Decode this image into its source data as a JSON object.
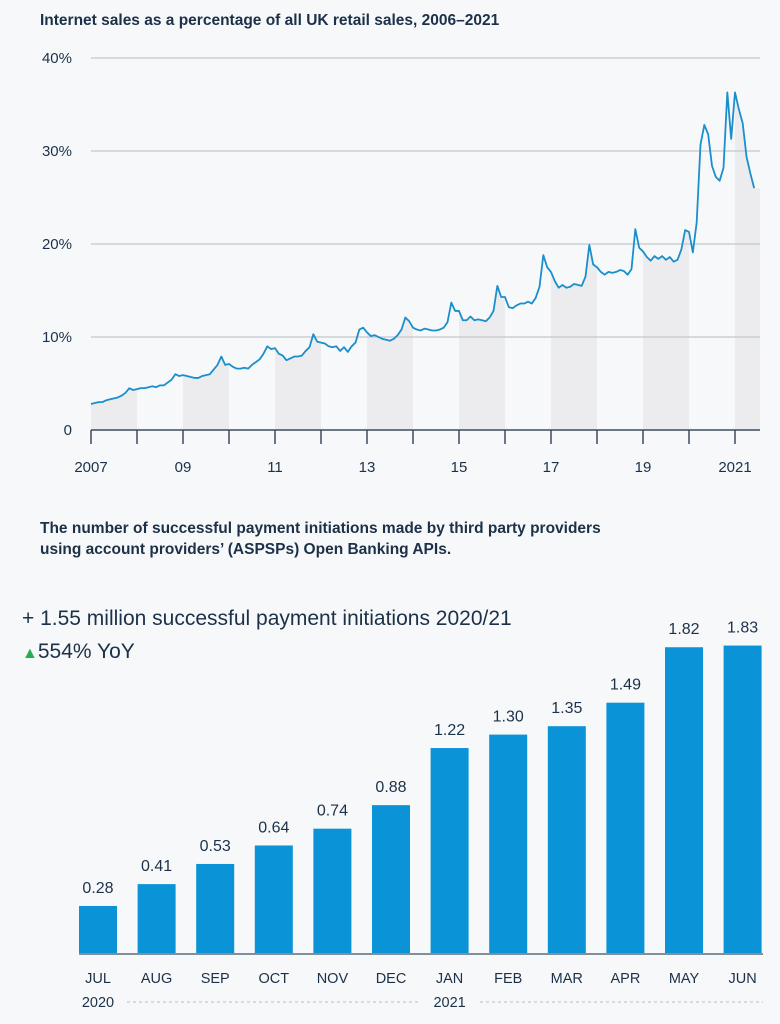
{
  "chart_data": [
    {
      "type": "line",
      "title": "Internet sales as a percentage of all  UK retail sales, 2006–2021",
      "y_ticks": [
        "0",
        "10%",
        "20%",
        "30%",
        "40%"
      ],
      "ylim": [
        0,
        40
      ],
      "x_ticks": [
        {
          "year": 2007,
          "label": "2007"
        },
        {
          "year": 2009,
          "label": "09"
        },
        {
          "year": 2011,
          "label": "11"
        },
        {
          "year": 2013,
          "label": "13"
        },
        {
          "year": 2015,
          "label": "15"
        },
        {
          "year": 2017,
          "label": "17"
        },
        {
          "year": 2019,
          "label": "19"
        },
        {
          "year": 2021,
          "label": "2021"
        }
      ],
      "grid": true,
      "line_color": "#1a8fcc",
      "shading": "alternate years shaded under the line",
      "x_start": "2007-01",
      "frequency": "monthly",
      "values_by_year": {
        "2007": [
          2.8,
          2.9,
          3.0,
          3.0,
          3.2,
          3.3,
          3.4,
          3.5,
          3.7,
          4.0,
          4.5,
          4.3
        ],
        "2008": [
          4.4,
          4.5,
          4.5,
          4.6,
          4.7,
          4.6,
          4.8,
          4.8,
          5.1,
          5.4,
          6.0,
          5.8
        ],
        "2009": [
          5.9,
          5.8,
          5.7,
          5.6,
          5.6,
          5.8,
          5.9,
          6.0,
          6.5,
          7.0,
          7.9,
          7.0
        ],
        "2010": [
          7.1,
          6.8,
          6.6,
          6.6,
          6.7,
          6.6,
          7.0,
          7.3,
          7.6,
          8.2,
          9.0,
          8.7
        ],
        "2011": [
          8.8,
          8.2,
          8.0,
          7.5,
          7.7,
          7.9,
          7.9,
          8.0,
          8.5,
          8.9,
          10.3,
          9.5
        ],
        "2012": [
          9.4,
          9.3,
          9.0,
          8.9,
          9.0,
          8.5,
          8.9,
          8.4,
          9.0,
          9.4,
          10.8,
          11.0
        ],
        "2013": [
          10.5,
          10.1,
          10.2,
          10.0,
          9.8,
          9.7,
          9.6,
          9.8,
          10.2,
          10.8,
          12.1,
          11.7
        ],
        "2014": [
          11.0,
          10.8,
          10.7,
          10.9,
          10.8,
          10.7,
          10.7,
          10.8,
          11.0,
          11.6,
          13.7,
          12.8
        ],
        "2015": [
          12.8,
          11.8,
          11.8,
          12.2,
          11.8,
          11.9,
          11.8,
          11.7,
          12.1,
          12.8,
          15.5,
          14.3
        ],
        "2016": [
          14.3,
          13.2,
          13.1,
          13.4,
          13.6,
          13.6,
          13.8,
          13.6,
          14.2,
          15.4,
          18.8,
          17.5
        ],
        "2017": [
          17.0,
          16.0,
          15.3,
          15.6,
          15.3,
          15.4,
          15.7,
          15.6,
          15.5,
          16.5,
          19.9,
          17.8
        ],
        "2018": [
          17.5,
          17.0,
          16.7,
          17.0,
          16.9,
          17.0,
          17.2,
          17.1,
          16.7,
          17.3,
          21.6,
          19.6
        ],
        "2019": [
          19.2,
          18.6,
          18.2,
          18.7,
          18.4,
          18.7,
          18.3,
          18.6,
          18.1,
          18.3,
          19.4,
          21.5
        ],
        "2020": [
          21.3,
          19.1,
          22.3,
          30.7,
          32.8,
          31.8,
          28.4,
          27.2,
          26.8,
          28.2,
          36.3,
          31.3
        ],
        "2021": [
          36.3,
          34.5,
          33.0,
          29.4,
          27.6,
          26.0
        ]
      }
    },
    {
      "type": "bar",
      "title": "The number of successful payment initiations made by third party providers using account providers’ (ASPSPs)  Open Banking APIs.",
      "headline": "+ 1.55 million successful payment initiations 2020/21",
      "yoy_arrow": "▲",
      "yoy": "554% YoY",
      "yoy_color": "#22b04b",
      "bar_color": "#0a93d6",
      "categories": [
        "JUL",
        "AUG",
        "SEP",
        "OCT",
        "NOV",
        "DEC",
        "JAN",
        "FEB",
        "MAR",
        "APR",
        "MAY",
        "JUN"
      ],
      "values": [
        0.28,
        0.41,
        0.53,
        0.64,
        0.74,
        0.88,
        1.22,
        1.3,
        1.35,
        1.49,
        1.82,
        1.83
      ],
      "value_labels": [
        "0.28",
        "0.41",
        "0.53",
        "0.64",
        "0.74",
        "0.88",
        "1.22",
        "1.30",
        "1.35",
        "1.49",
        "1.82",
        "1.83"
      ],
      "year_labels": [
        {
          "label": "2020",
          "starts_at": "JUL"
        },
        {
          "label": "2021",
          "starts_at": "JAN"
        }
      ],
      "ylim": [
        0,
        1.83
      ]
    }
  ]
}
